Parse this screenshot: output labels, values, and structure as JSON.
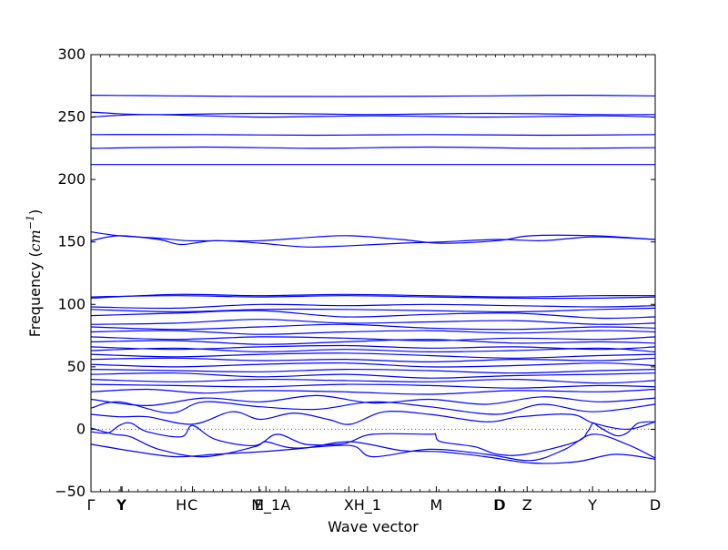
{
  "chart_data": {
    "type": "line",
    "title": "",
    "xlabel": "Wave vector",
    "ylabel": "Frequency (cm⁻¹)",
    "ylabel_base": "Frequency (",
    "ylabel_unit": "cm",
    "ylabel_exp": "−1",
    "ylabel_close": ")",
    "ylim": [
      -50,
      300
    ],
    "yticks": [
      -50,
      0,
      50,
      100,
      150,
      200,
      250,
      300
    ],
    "xlim": [
      0,
      1
    ],
    "grid": false,
    "line_color": "#0000ff",
    "zero_line_color": "#555555",
    "high_symmetry_points": [
      {
        "label": "Γ",
        "x": 0.0
      },
      {
        "label": "Y",
        "x": 0.053
      },
      {
        "label": "Y",
        "x": 0.055
      },
      {
        "label": "H",
        "x": 0.16
      },
      {
        "label": "C",
        "x": 0.18
      },
      {
        "label": "E",
        "x": 0.298
      },
      {
        "label": "M_1",
        "x": 0.31
      },
      {
        "label": "A",
        "x": 0.345
      },
      {
        "label": "X",
        "x": 0.457
      },
      {
        "label": "H_1",
        "x": 0.49
      },
      {
        "label": "M",
        "x": 0.612
      },
      {
        "label": "D",
        "x": 0.723
      },
      {
        "label": "D",
        "x": 0.725
      },
      {
        "label": "Z",
        "x": 0.773
      },
      {
        "label": "Y",
        "x": 0.889
      },
      {
        "label": "D",
        "x": 1.0
      }
    ],
    "series": [
      {
        "x": [
          0,
          0.15,
          0.3,
          0.5,
          0.7,
          0.85,
          1
        ],
        "values": [
          267.5,
          267,
          266.5,
          266.5,
          267,
          267.5,
          267
        ]
      },
      {
        "x": [
          0,
          0.1,
          0.3,
          0.5,
          0.7,
          0.9,
          1
        ],
        "values": [
          254,
          252,
          253,
          252,
          253,
          252,
          252
        ]
      },
      {
        "x": [
          0,
          0.1,
          0.3,
          0.5,
          0.7,
          0.9,
          1
        ],
        "values": [
          250,
          252,
          250,
          251,
          250,
          251,
          250
        ]
      },
      {
        "x": [
          0,
          0.2,
          0.4,
          0.6,
          0.8,
          1
        ],
        "values": [
          236,
          236,
          235.5,
          236,
          235.5,
          236
        ]
      },
      {
        "x": [
          0,
          0.2,
          0.4,
          0.6,
          0.8,
          1
        ],
        "values": [
          225,
          226,
          225,
          226,
          225,
          225.5
        ]
      },
      {
        "x": [
          0,
          0.2,
          0.4,
          0.6,
          0.8,
          1
        ],
        "values": [
          212,
          212,
          212,
          212,
          212,
          212
        ]
      },
      {
        "x": [
          0,
          0.05,
          0.12,
          0.17,
          0.22,
          0.3,
          0.4,
          0.46,
          0.55,
          0.62,
          0.72,
          0.78,
          0.89,
          1
        ],
        "values": [
          158,
          155,
          153,
          151,
          151,
          151,
          154,
          155,
          152,
          149,
          151,
          155,
          155,
          152
        ]
      },
      {
        "x": [
          0,
          0.05,
          0.12,
          0.16,
          0.22,
          0.3,
          0.38,
          0.46,
          0.55,
          0.62,
          0.72,
          0.8,
          0.89,
          1
        ],
        "values": [
          151,
          155,
          152,
          148,
          151,
          149,
          146,
          147,
          149,
          150,
          152,
          151,
          154,
          152
        ]
      },
      {
        "x": [
          0,
          0.15,
          0.3,
          0.45,
          0.6,
          0.75,
          0.9,
          1
        ],
        "values": [
          106,
          107,
          106,
          107,
          106,
          105,
          105,
          106
        ]
      },
      {
        "x": [
          0,
          0.15,
          0.3,
          0.45,
          0.6,
          0.75,
          0.9,
          1
        ],
        "values": [
          105,
          108,
          107,
          108,
          107,
          106,
          107,
          107
        ]
      },
      {
        "x": [
          0,
          0.15,
          0.3,
          0.45,
          0.6,
          0.75,
          0.9,
          1
        ],
        "values": [
          98,
          97,
          100,
          99,
          100,
          99,
          98,
          99
        ]
      },
      {
        "x": [
          0,
          0.15,
          0.3,
          0.45,
          0.6,
          0.75,
          0.9,
          1
        ],
        "values": [
          96,
          94,
          96,
          96,
          95,
          94,
          96,
          97
        ]
      },
      {
        "x": [
          0,
          0.15,
          0.3,
          0.45,
          0.6,
          0.75,
          0.9,
          1
        ],
        "values": [
          91,
          93,
          95,
          90,
          92,
          93,
          89,
          90
        ]
      },
      {
        "x": [
          0,
          0.15,
          0.3,
          0.45,
          0.6,
          0.75,
          0.9,
          1
        ],
        "values": [
          84,
          85,
          88,
          85,
          86,
          87,
          84,
          85
        ]
      },
      {
        "x": [
          0,
          0.15,
          0.3,
          0.45,
          0.6,
          0.75,
          0.9,
          1
        ],
        "values": [
          82,
          80,
          82,
          84,
          81,
          80,
          82,
          81
        ]
      },
      {
        "x": [
          0,
          0.15,
          0.3,
          0.45,
          0.6,
          0.75,
          0.9,
          1
        ],
        "values": [
          78,
          79,
          76,
          78,
          79,
          77,
          79,
          78
        ]
      },
      {
        "x": [
          0,
          0.15,
          0.3,
          0.45,
          0.6,
          0.75,
          0.9,
          1
        ],
        "values": [
          74,
          72,
          74,
          73,
          71,
          73,
          72,
          74
        ]
      },
      {
        "x": [
          0,
          0.15,
          0.3,
          0.45,
          0.6,
          0.75,
          0.9,
          1
        ],
        "values": [
          70,
          71,
          68,
          70,
          72,
          69,
          70,
          69
        ]
      },
      {
        "x": [
          0,
          0.15,
          0.3,
          0.45,
          0.6,
          0.75,
          0.9,
          1
        ],
        "values": [
          66,
          64,
          66,
          67,
          65,
          66,
          64,
          66
        ]
      },
      {
        "x": [
          0,
          0.15,
          0.3,
          0.45,
          0.6,
          0.75,
          0.9,
          1
        ],
        "values": [
          63,
          65,
          62,
          64,
          62,
          63,
          65,
          62
        ]
      },
      {
        "x": [
          0,
          0.15,
          0.3,
          0.45,
          0.6,
          0.75,
          0.9,
          1
        ],
        "values": [
          60,
          58,
          60,
          61,
          59,
          57,
          59,
          60
        ]
      },
      {
        "x": [
          0,
          0.15,
          0.3,
          0.45,
          0.6,
          0.75,
          0.9,
          1
        ],
        "values": [
          56,
          57,
          55,
          56,
          54,
          56,
          55,
          57
        ]
      },
      {
        "x": [
          0,
          0.15,
          0.3,
          0.45,
          0.6,
          0.75,
          0.9,
          1
        ],
        "values": [
          52,
          50,
          52,
          53,
          50,
          51,
          53,
          51
        ]
      },
      {
        "x": [
          0,
          0.15,
          0.3,
          0.45,
          0.6,
          0.75,
          0.9,
          1
        ],
        "values": [
          48,
          47,
          46,
          48,
          47,
          45,
          47,
          48
        ]
      },
      {
        "x": [
          0,
          0.15,
          0.3,
          0.45,
          0.6,
          0.75,
          0.9,
          1
        ],
        "values": [
          44,
          45,
          42,
          44,
          41,
          43,
          44,
          45
        ]
      },
      {
        "x": [
          0,
          0.15,
          0.3,
          0.45,
          0.6,
          0.75,
          0.9,
          1
        ],
        "values": [
          40,
          38,
          40,
          39,
          38,
          40,
          37,
          39
        ]
      },
      {
        "x": [
          0,
          0.15,
          0.3,
          0.45,
          0.6,
          0.75,
          0.9,
          1
        ],
        "values": [
          36,
          35,
          34,
          36,
          35,
          33,
          35,
          34
        ]
      },
      {
        "x": [
          0,
          0.1,
          0.2,
          0.3,
          0.45,
          0.6,
          0.75,
          0.9,
          1
        ],
        "values": [
          30,
          32,
          29,
          31,
          30,
          28,
          31,
          30,
          32
        ]
      },
      {
        "x": [
          0,
          0.1,
          0.2,
          0.3,
          0.4,
          0.5,
          0.6,
          0.7,
          0.8,
          0.9,
          1
        ],
        "values": [
          24,
          19,
          25,
          22,
          27,
          21,
          24,
          20,
          26,
          22,
          25
        ]
      },
      {
        "x": [
          0,
          0.05,
          0.14,
          0.2,
          0.3,
          0.4,
          0.5,
          0.6,
          0.72,
          0.8,
          0.89,
          1
        ],
        "values": [
          17,
          22,
          13,
          22,
          18,
          16,
          22,
          18,
          12,
          20,
          14,
          20
        ]
      },
      {
        "x": [
          0,
          0.05,
          0.1,
          0.18,
          0.25,
          0.3,
          0.36,
          0.42,
          0.46,
          0.52,
          0.6,
          0.7,
          0.76,
          0.85,
          0.89,
          0.95,
          1
        ],
        "values": [
          12,
          10,
          10,
          4,
          14,
          8,
          13,
          8,
          4,
          14,
          12,
          6,
          10,
          12,
          5,
          0,
          6
        ]
      },
      {
        "x": [
          0,
          0.03,
          0.05,
          0.07,
          0.1,
          0.16,
          0.18,
          0.22,
          0.29,
          0.33,
          0.38,
          0.44,
          0.46,
          0.5,
          0.6,
          0.61,
          0.62,
          0.68,
          0.72,
          0.77,
          0.86,
          0.88,
          0.89,
          0.9,
          0.93,
          0.95,
          0.97,
          1
        ],
        "values": [
          -2,
          -3,
          3,
          5,
          -2,
          -6,
          3,
          -8,
          -13,
          -4,
          -12,
          -12,
          -10,
          -4,
          -4,
          -4,
          -10,
          -14,
          -20,
          -20,
          -10,
          -2,
          5,
          2,
          -5,
          -3,
          5,
          6
        ]
      },
      {
        "x": [
          0,
          0.04,
          0.07,
          0.12,
          0.2,
          0.29,
          0.31,
          0.36,
          0.46,
          0.5,
          0.6,
          0.7,
          0.78,
          0.84,
          0.89,
          0.95,
          1
        ],
        "values": [
          1,
          -4,
          -6,
          -16,
          -22,
          -14,
          -10,
          -15,
          -13,
          -22,
          -16,
          -20,
          -25,
          -16,
          -4,
          -12,
          -23
        ]
      },
      {
        "x": [
          0,
          0.08,
          0.15,
          0.22,
          0.3,
          0.38,
          0.46,
          0.55,
          0.62,
          0.7,
          0.78,
          0.86,
          0.93,
          1
        ],
        "values": [
          -12,
          -18,
          -22,
          -20,
          -18,
          -15,
          -10,
          -17,
          -18,
          -22,
          -27,
          -26,
          -20,
          -24
        ]
      }
    ]
  }
}
